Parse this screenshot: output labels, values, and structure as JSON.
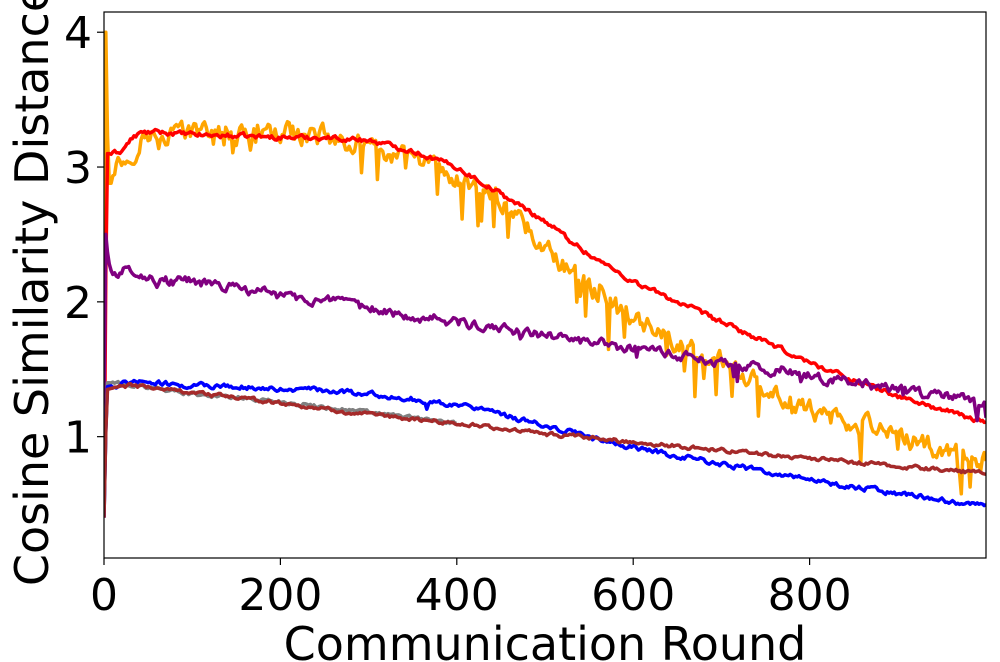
{
  "chart_data": {
    "type": "line",
    "title": "",
    "xlabel": "Communication Round",
    "ylabel": "Cosine Similarity Distance",
    "xlim": [
      0,
      1000
    ],
    "ylim": [
      0.1,
      4.15
    ],
    "xticks": [
      0,
      200,
      400,
      600,
      800
    ],
    "xtick_labels": [
      "0",
      "200",
      "400",
      "600",
      "800"
    ],
    "yticks": [
      1,
      2,
      3,
      4
    ],
    "ytick_labels": [
      "1",
      "2",
      "3",
      "4"
    ],
    "grid": false,
    "legend": "none",
    "series": [
      {
        "color": "#ffa500",
        "noise": 0.06,
        "spike_prob": 0.1,
        "spike_mag": 0.35,
        "x": [
          0,
          2,
          5,
          10,
          20,
          30,
          40,
          60,
          100,
          200,
          250,
          300,
          350,
          400,
          450,
          500,
          550,
          600,
          650,
          700,
          750,
          800,
          850,
          900,
          950,
          1000
        ],
        "y": [
          1.4,
          4.0,
          2.85,
          3.0,
          3.05,
          3.05,
          3.2,
          3.25,
          3.25,
          3.25,
          3.23,
          3.15,
          3.05,
          2.9,
          2.75,
          2.4,
          2.1,
          1.9,
          1.7,
          1.55,
          1.35,
          1.2,
          1.1,
          1.0,
          0.9,
          0.8
        ]
      },
      {
        "color": "#ff0000",
        "noise": 0.015,
        "spike_prob": 0,
        "spike_mag": 0,
        "x": [
          0,
          3,
          10,
          20,
          30,
          40,
          60,
          100,
          200,
          250,
          300,
          350,
          400,
          450,
          500,
          550,
          600,
          650,
          700,
          750,
          800,
          850,
          900,
          950,
          1000
        ],
        "y": [
          0.4,
          3.1,
          3.1,
          3.12,
          3.2,
          3.25,
          3.26,
          3.24,
          3.22,
          3.22,
          3.2,
          3.12,
          3.0,
          2.8,
          2.6,
          2.35,
          2.15,
          2.0,
          1.85,
          1.7,
          1.55,
          1.42,
          1.3,
          1.2,
          1.1
        ]
      },
      {
        "color": "#800080",
        "noise": 0.03,
        "spike_prob": 0.03,
        "spike_mag": 0.12,
        "x": [
          0,
          2,
          5,
          10,
          30,
          60,
          100,
          200,
          300,
          400,
          500,
          600,
          700,
          800,
          900,
          1000
        ],
        "y": [
          1.2,
          2.5,
          2.3,
          2.2,
          2.25,
          2.15,
          2.15,
          2.05,
          1.95,
          1.85,
          1.75,
          1.65,
          1.55,
          1.45,
          1.35,
          1.25
        ]
      },
      {
        "color": "#808080",
        "noise": 0.012,
        "spike_prob": 0,
        "spike_mag": 0,
        "x": [
          0,
          3,
          10,
          30,
          60,
          100,
          200,
          300,
          400
        ],
        "y": [
          0.4,
          1.4,
          1.4,
          1.38,
          1.36,
          1.32,
          1.26,
          1.18,
          1.1
        ]
      },
      {
        "color": "#0000ff",
        "noise": 0.015,
        "spike_prob": 0.01,
        "spike_mag": 0.08,
        "x": [
          0,
          3,
          10,
          30,
          60,
          100,
          200,
          300,
          400,
          500,
          600,
          700,
          800,
          900,
          1000
        ],
        "y": [
          0.4,
          1.37,
          1.38,
          1.4,
          1.4,
          1.38,
          1.36,
          1.32,
          1.24,
          1.08,
          0.92,
          0.8,
          0.68,
          0.58,
          0.48
        ]
      },
      {
        "color": "#a52a2a",
        "noise": 0.012,
        "spike_prob": 0,
        "spike_mag": 0,
        "x": [
          0,
          3,
          10,
          30,
          60,
          100,
          200,
          300,
          400,
          500,
          600,
          700,
          800,
          900,
          1000
        ],
        "y": [
          0.4,
          1.35,
          1.36,
          1.38,
          1.36,
          1.33,
          1.25,
          1.16,
          1.1,
          1.02,
          0.96,
          0.9,
          0.84,
          0.78,
          0.73
        ]
      }
    ]
  }
}
